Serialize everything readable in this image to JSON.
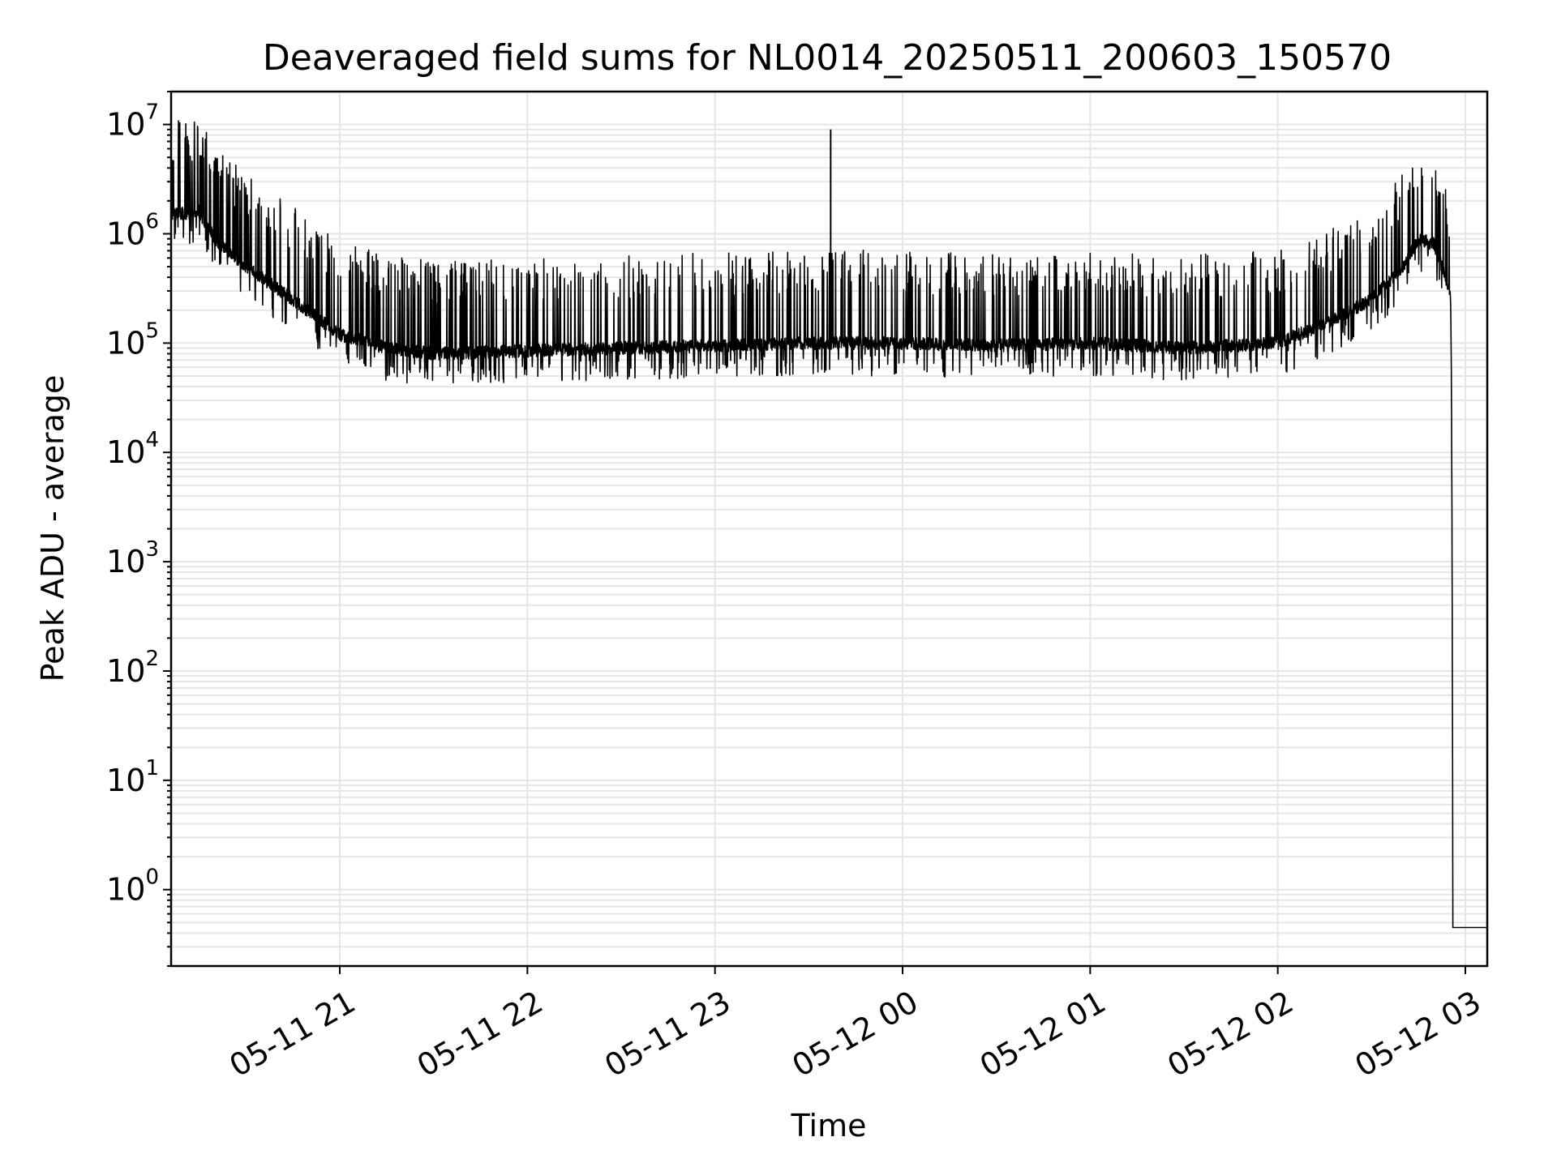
{
  "chart_data": {
    "type": "line",
    "title": "Deaveraged field sums for NL0014_20250511_200603_150570",
    "xlabel": "Time",
    "ylabel": "Peak ADU - average",
    "y_scale": "log",
    "ylim": [
      0.2,
      20000000
    ],
    "xlim": [
      "2025-05-11 20:06:03",
      "2025-05-12 03:07:00"
    ],
    "grid": true,
    "line_color": "#000000",
    "grid_color": "#e6e6e6",
    "x_ticks": [
      {
        "time": "2025-05-11 21:00",
        "label": "05-11 21"
      },
      {
        "time": "2025-05-11 22:00",
        "label": "05-11 22"
      },
      {
        "time": "2025-05-11 23:00",
        "label": "05-11 23"
      },
      {
        "time": "2025-05-12 00:00",
        "label": "05-12 00"
      },
      {
        "time": "2025-05-12 01:00",
        "label": "05-12 01"
      },
      {
        "time": "2025-05-12 02:00",
        "label": "05-12 02"
      },
      {
        "time": "2025-05-12 03:00",
        "label": "05-12 03"
      }
    ],
    "y_ticks": [
      {
        "value": 1,
        "base": "10",
        "exp": "0"
      },
      {
        "value": 10,
        "base": "10",
        "exp": "1"
      },
      {
        "value": 100,
        "base": "10",
        "exp": "2"
      },
      {
        "value": 1000,
        "base": "10",
        "exp": "3"
      },
      {
        "value": 10000,
        "base": "10",
        "exp": "4"
      },
      {
        "value": 100000,
        "base": "10",
        "exp": "5"
      },
      {
        "value": 1000000,
        "base": "10",
        "exp": "6"
      },
      {
        "value": 10000000,
        "base": "10",
        "exp": "7"
      }
    ],
    "series": [
      {
        "x": [
          "2025-05-11 20:06",
          "2025-05-11 20:15",
          "2025-05-11 20:20",
          "2025-05-11 20:30",
          "2025-05-11 20:45",
          "2025-05-11 21:00",
          "2025-05-11 21:15",
          "2025-05-11 21:30",
          "2025-05-11 22:00",
          "2025-05-11 22:30",
          "2025-05-11 23:00",
          "2025-05-11 23:30",
          "2025-05-12 00:00",
          "2025-05-12 00:30",
          "2025-05-12 01:00",
          "2025-05-12 01:30",
          "2025-05-12 02:00",
          "2025-05-12 02:15",
          "2025-05-12 02:30",
          "2025-05-12 02:40",
          "2025-05-12 02:45",
          "2025-05-12 02:50",
          "2025-05-12 02:55",
          "2025-05-12 02:56",
          "2025-05-12 03:07"
        ],
        "y": [
          1500000,
          1600000,
          900000,
          500000,
          250000,
          120000,
          90000,
          80000,
          85000,
          90000,
          95000,
          100000,
          100000,
          95000,
          100000,
          90000,
          100000,
          150000,
          250000,
          500000,
          900000,
          800000,
          300000,
          0.45,
          0.45
        ],
        "spikes": [
          {
            "x": "2025-05-11 23:37",
            "y": 9000000
          },
          {
            "x": "2025-05-11 23:20",
            "y": 50000
          }
        ]
      }
    ]
  }
}
